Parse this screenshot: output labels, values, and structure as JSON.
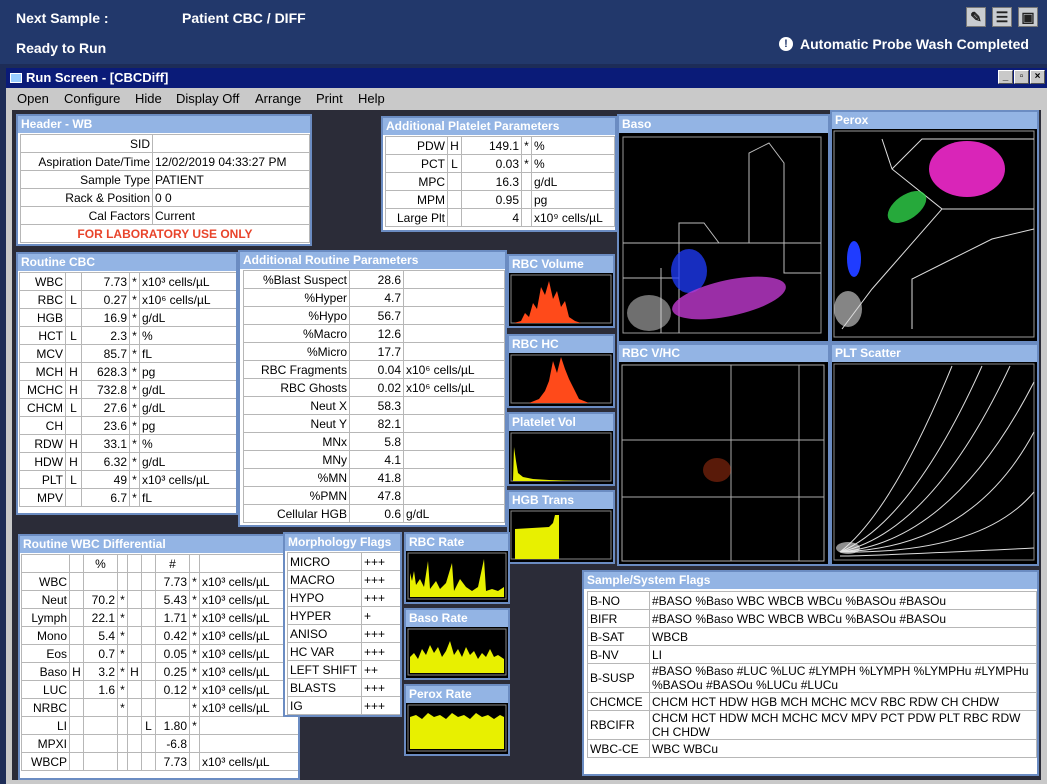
{
  "topbar": {
    "next_sample_label": "Next Sample :",
    "next_sample_value": "Patient CBC / DIFF",
    "status": "Ready to Run",
    "message": "Automatic Probe Wash Completed",
    "info_icon": "!"
  },
  "window": {
    "title": "Run Screen - [CBCDiff]"
  },
  "menu": [
    "Open",
    "Configure",
    "Hide",
    "Display Off",
    "Arrange",
    "Print",
    "Help"
  ],
  "header_wb": {
    "title": "Header - WB",
    "rows": [
      [
        "SID",
        ""
      ],
      [
        "Aspiration Date/Time",
        "12/02/2019 04:33:27 PM"
      ],
      [
        "Sample Type",
        "PATIENT"
      ],
      [
        "Rack & Position",
        "0 0"
      ],
      [
        "Cal Factors",
        "Current"
      ]
    ],
    "warning": "FOR LABORATORY USE ONLY"
  },
  "platelet_params": {
    "title": "Additional Platelet Parameters",
    "rows": [
      [
        "PDW",
        "H",
        "149.1",
        "*",
        "%"
      ],
      [
        "PCT",
        "L",
        "0.03",
        "*",
        "%"
      ],
      [
        "MPC",
        "",
        "16.3",
        "",
        "g/dL"
      ],
      [
        "MPM",
        "",
        "0.95",
        "",
        "pg"
      ],
      [
        "Large Plt",
        "",
        "4",
        "",
        "x10⁹ cells/µL"
      ]
    ]
  },
  "routine_cbc": {
    "title": "Routine CBC",
    "rows": [
      [
        "WBC",
        "",
        "7.73",
        "*",
        "x10³ cells/µL"
      ],
      [
        "RBC",
        "L",
        "0.27",
        "*",
        "x10⁶ cells/µL"
      ],
      [
        "HGB",
        "",
        "16.9",
        "*",
        "g/dL"
      ],
      [
        "HCT",
        "L",
        "2.3",
        "*",
        "%"
      ],
      [
        "MCV",
        "",
        "85.7",
        "*",
        "fL"
      ],
      [
        "MCH",
        "H",
        "628.3",
        "*",
        "pg"
      ],
      [
        "MCHC",
        "H",
        "732.8",
        "*",
        "g/dL"
      ],
      [
        "CHCM",
        "L",
        "27.6",
        "*",
        "g/dL"
      ],
      [
        "CH",
        "",
        "23.6",
        "*",
        "pg"
      ],
      [
        "RDW",
        "H",
        "33.1",
        "*",
        "%"
      ],
      [
        "HDW",
        "H",
        "6.32",
        "*",
        "g/dL"
      ],
      [
        "PLT",
        "L",
        "49",
        "*",
        "x10³ cells/µL"
      ],
      [
        "MPV",
        "",
        "6.7",
        "*",
        "fL"
      ]
    ]
  },
  "routine_params": {
    "title": "Additional Routine Parameters",
    "rows": [
      [
        "%Blast Suspect",
        "28.6",
        ""
      ],
      [
        "%Hyper",
        "4.7",
        ""
      ],
      [
        "%Hypo",
        "56.7",
        ""
      ],
      [
        "%Macro",
        "12.6",
        ""
      ],
      [
        "%Micro",
        "17.7",
        ""
      ],
      [
        "RBC Fragments",
        "0.04",
        "x10⁶ cells/µL"
      ],
      [
        "RBC Ghosts",
        "0.02",
        "x10⁶ cells/µL"
      ],
      [
        "Neut X",
        "58.3",
        ""
      ],
      [
        "Neut Y",
        "82.1",
        ""
      ],
      [
        "MNx",
        "5.8",
        ""
      ],
      [
        "MNy",
        "4.1",
        ""
      ],
      [
        "%MN",
        "41.8",
        ""
      ],
      [
        "%PMN",
        "47.8",
        ""
      ],
      [
        "Cellular HGB",
        "0.6",
        "g/dL"
      ]
    ]
  },
  "wbc_diff": {
    "title": "Routine WBC Differential",
    "col_pct": "%",
    "col_num": "#",
    "rows": [
      [
        "WBC",
        "",
        "",
        "",
        "",
        "",
        "7.73",
        "*",
        "x10³ cells/µL"
      ],
      [
        "Neut",
        "",
        "70.2",
        "*",
        "",
        "",
        "5.43",
        "*",
        "x10³ cells/µL"
      ],
      [
        "Lymph",
        "",
        "22.1",
        "*",
        "",
        "",
        "1.71",
        "*",
        "x10³ cells/µL"
      ],
      [
        "Mono",
        "",
        "5.4",
        "*",
        "",
        "",
        "0.42",
        "*",
        "x10³ cells/µL"
      ],
      [
        "Eos",
        "",
        "0.7",
        "*",
        "",
        "",
        "0.05",
        "*",
        "x10³ cells/µL"
      ],
      [
        "Baso",
        "H",
        "3.2",
        "*",
        "H",
        "",
        "0.25",
        "*",
        "x10³ cells/µL"
      ],
      [
        "LUC",
        "",
        "1.6",
        "*",
        "",
        "",
        "0.12",
        "*",
        "x10³ cells/µL"
      ],
      [
        "NRBC",
        "",
        "",
        "*",
        "",
        "",
        "",
        "*",
        "x10³ cells/µL"
      ],
      [
        "LI",
        "",
        "",
        "",
        "",
        "L",
        "1.80",
        "*",
        ""
      ],
      [
        "MPXI",
        "",
        "",
        "",
        "",
        "",
        "-6.8",
        "",
        ""
      ],
      [
        "WBCP",
        "",
        "",
        "",
        "",
        "",
        "7.73",
        "",
        "x10³ cells/µL"
      ]
    ]
  },
  "morph_flags": {
    "title": "Morphology Flags",
    "rows": [
      [
        "MICRO",
        "+++"
      ],
      [
        "MACRO",
        "+++"
      ],
      [
        "HYPO",
        "+++"
      ],
      [
        "HYPER",
        "+"
      ],
      [
        "ANISO",
        "+++"
      ],
      [
        "HC VAR",
        "+++"
      ],
      [
        "LEFT SHIFT",
        "++"
      ],
      [
        "BLASTS",
        "+++"
      ],
      [
        "IG",
        "+++"
      ]
    ]
  },
  "histograms": {
    "rbc_volume": "RBC Volume",
    "rbc_hc": "RBC HC",
    "platelet_vol": "Platelet Vol",
    "hgb_trans": "HGB Trans",
    "rbc_rate": "RBC Rate",
    "baso_rate": "Baso Rate",
    "perox_rate": "Perox Rate"
  },
  "scatters": {
    "baso": "Baso",
    "perox": "Perox",
    "rbc_vhc": "RBC V/HC",
    "plt_scatter": "PLT Scatter"
  },
  "colors": {
    "histogram_red": "#ff4a1a",
    "rate_yellow": "#e8f000",
    "baso_purple": "#c03ad0",
    "perox_magenta": "#ff2bd8",
    "perox_green": "#2fd34a",
    "blue": "#1f3cff"
  },
  "sample_flags": {
    "title": "Sample/System Flags",
    "rows": [
      [
        "B-NO",
        "#BASO %Baso WBC WBCB WBCu %BASOu #BASOu"
      ],
      [
        "BIFR",
        "#BASO %Baso WBC WBCB WBCu %BASOu #BASOu"
      ],
      [
        "B-SAT",
        "WBCB"
      ],
      [
        "B-NV",
        "LI"
      ],
      [
        "B-SUSP",
        "#BASO %Baso #LUC %LUC #LYMPH %LYMPH %LYMPHu #LYMPHu %BASOu #BASOu %LUCu #LUCu"
      ],
      [
        "CHCMCE",
        "CHCM HCT HDW HGB MCH MCHC MCV RBC RDW CH CHDW"
      ],
      [
        "RBCIFR",
        "CHCM HCT HDW MCH MCHC MCV MPV PCT PDW PLT RBC RDW CH CHDW"
      ],
      [
        "WBC-CE",
        "WBC WBCu"
      ]
    ]
  }
}
